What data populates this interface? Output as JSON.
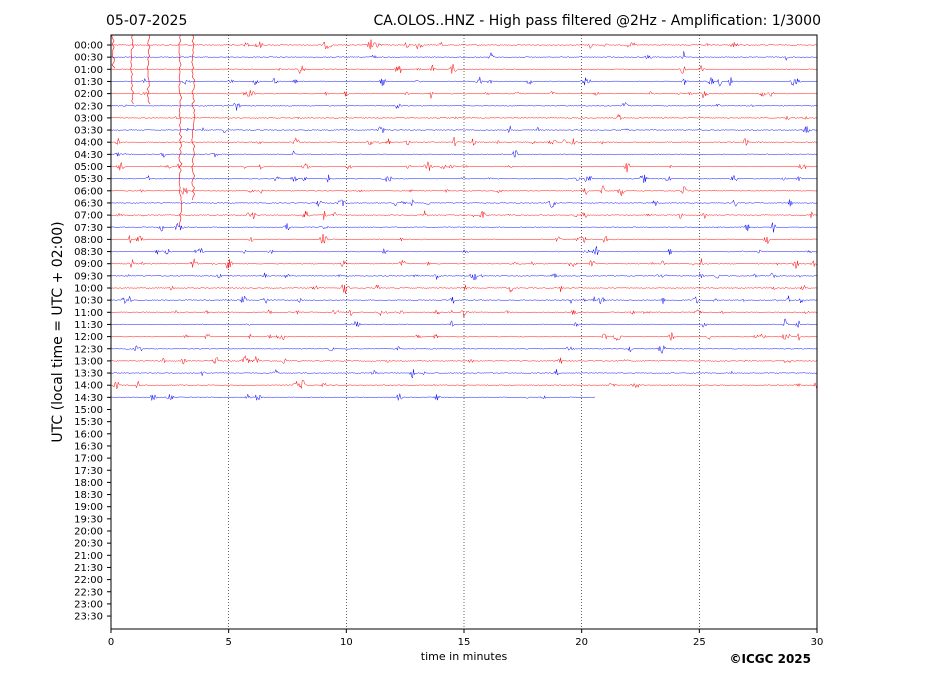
{
  "header": {
    "date": "05-07-2025",
    "title": "CA.OLOS..HNZ - High pass filtered @2Hz - Amplification: 1/3000"
  },
  "footer": {
    "copyright": "©ICGC 2025"
  },
  "chart_data": {
    "type": "line",
    "title": "CA.OLOS..HNZ - High pass filtered @2Hz - Amplification: 1/3000",
    "xlabel": "time in minutes",
    "ylabel": "UTC (local time = UTC + 02:00)",
    "xlim": [
      0,
      30
    ],
    "x_ticks": [
      0,
      5,
      10,
      15,
      20,
      25,
      30
    ],
    "y_tick_labels": [
      "00:00",
      "00:30",
      "01:00",
      "01:30",
      "02:00",
      "02:30",
      "03:00",
      "03:30",
      "04:00",
      "04:30",
      "05:00",
      "05:30",
      "06:00",
      "06:30",
      "07:00",
      "07:30",
      "08:00",
      "08:30",
      "09:00",
      "09:30",
      "10:00",
      "10:30",
      "11:00",
      "11:30",
      "12:00",
      "12:30",
      "13:00",
      "13:30",
      "14:00",
      "14:30",
      "15:00",
      "15:30",
      "16:00",
      "16:30",
      "17:00",
      "17:30",
      "18:00",
      "18:30",
      "19:00",
      "19:30",
      "20:00",
      "20:30",
      "21:00",
      "21:30",
      "22:00",
      "22:30",
      "23:00",
      "23:30"
    ],
    "vertical_gridlines": [
      5,
      10,
      15,
      20,
      25
    ],
    "grid_style": "dotted vertical",
    "trace_colors": [
      "#ff0000",
      "#0000ff"
    ],
    "trace_end_minute_last_row": 20.6,
    "traces_recorded": 30
  }
}
